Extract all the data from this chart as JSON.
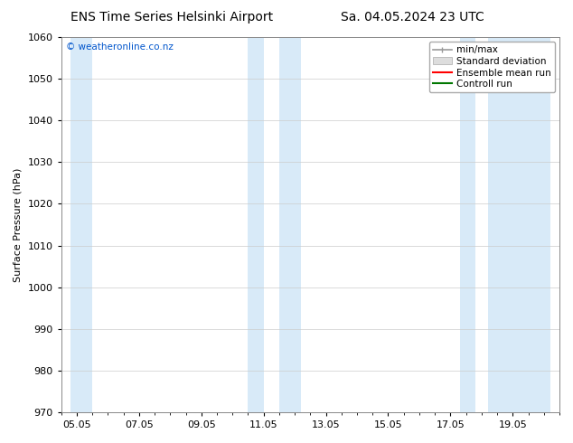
{
  "title_left": "ENS Time Series Helsinki Airport",
  "title_right": "Sa. 04.05.2024 23 UTC",
  "ylabel": "Surface Pressure (hPa)",
  "ylim": [
    970,
    1060
  ],
  "yticks": [
    970,
    980,
    990,
    1000,
    1010,
    1020,
    1030,
    1040,
    1050,
    1060
  ],
  "xtick_labels": [
    "05.05",
    "07.05",
    "09.05",
    "11.05",
    "13.05",
    "15.05",
    "17.05",
    "19.05"
  ],
  "xtick_positions": [
    0,
    2,
    4,
    6,
    8,
    10,
    12,
    14
  ],
  "xlim": [
    -0.2,
    15.2
  ],
  "shaded_bands": [
    {
      "x_start": -0.2,
      "x_end": 0.5
    },
    {
      "x_start": 5.5,
      "x_end": 6.0
    },
    {
      "x_start": 6.5,
      "x_end": 7.2
    },
    {
      "x_start": 12.3,
      "x_end": 12.8
    },
    {
      "x_start": 13.2,
      "x_end": 15.2
    }
  ],
  "shade_color": "#d8eaf8",
  "bg_color": "#ffffff",
  "watermark": "© weatheronline.co.nz",
  "watermark_color": "#0055cc",
  "legend_items": [
    {
      "label": "min/max",
      "color": "#999999"
    },
    {
      "label": "Standard deviation",
      "color": "#cccccc"
    },
    {
      "label": "Ensemble mean run",
      "color": "#ff0000"
    },
    {
      "label": "Controll run",
      "color": "#007700"
    }
  ],
  "title_fontsize": 10,
  "tick_fontsize": 8,
  "ylabel_fontsize": 8,
  "legend_fontsize": 7.5,
  "watermark_fontsize": 7.5
}
